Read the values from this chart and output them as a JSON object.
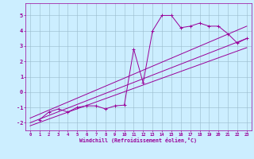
{
  "xlabel": "Windchill (Refroidissement éolien,°C)",
  "bg_color": "#cceeff",
  "line_color": "#990099",
  "grid_color": "#99bbcc",
  "xlim": [
    -0.5,
    23.5
  ],
  "ylim": [
    -2.5,
    5.8
  ],
  "xticks": [
    0,
    1,
    2,
    3,
    4,
    5,
    6,
    7,
    8,
    9,
    10,
    11,
    12,
    13,
    14,
    15,
    16,
    17,
    18,
    19,
    20,
    21,
    22,
    23
  ],
  "yticks": [
    -2,
    -1,
    0,
    1,
    2,
    3,
    4,
    5
  ],
  "scatter_x": [
    1,
    2,
    3,
    4,
    5,
    6,
    7,
    8,
    9,
    10,
    11,
    12,
    13,
    14,
    15,
    16,
    17,
    18,
    19,
    20,
    21,
    22,
    23
  ],
  "scatter_y": [
    -1.8,
    -1.3,
    -1.1,
    -1.3,
    -1.0,
    -0.9,
    -0.9,
    -1.1,
    -0.9,
    -0.85,
    2.8,
    0.6,
    4.0,
    5.0,
    5.0,
    4.2,
    4.3,
    4.5,
    4.3,
    4.3,
    3.8,
    3.2,
    3.5
  ],
  "line1_x": [
    0,
    23
  ],
  "line1_y": [
    -2.0,
    3.5
  ],
  "line2_x": [
    0,
    23
  ],
  "line2_y": [
    -1.7,
    4.3
  ],
  "line3_x": [
    0,
    23
  ],
  "line3_y": [
    -2.2,
    2.9
  ]
}
